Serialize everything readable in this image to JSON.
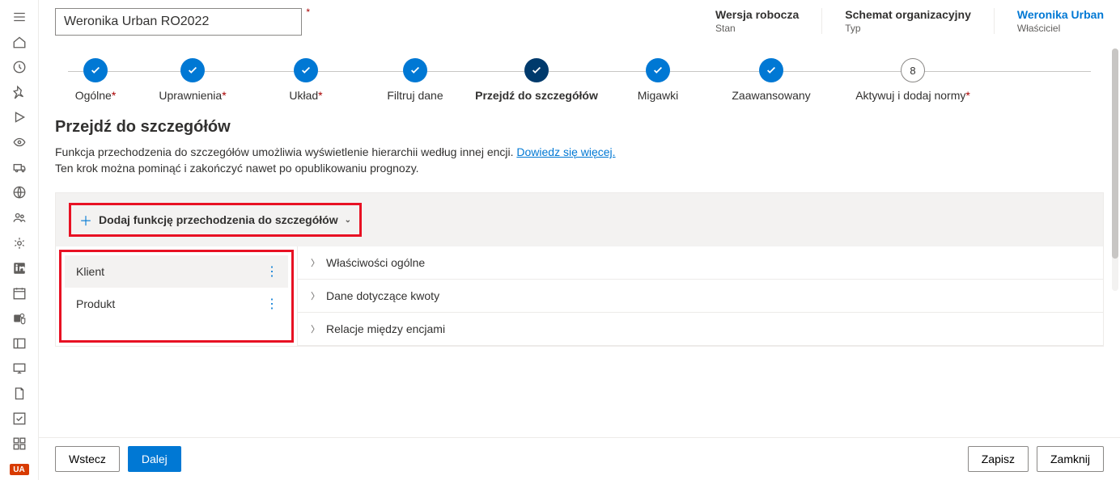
{
  "colors": {
    "primary": "#0078d4",
    "primary_dark": "#003a6c",
    "danger_border": "#e81123",
    "required": "#a80000",
    "text": "#323130",
    "text_secondary": "#605e5c",
    "border": "#edebe9",
    "panel_bg": "#f3f2f1"
  },
  "sidebar": {
    "badge": "UA"
  },
  "header": {
    "title_value": "Weronika Urban RO2022",
    "required": true,
    "meta": [
      {
        "label": "Wersja robocza",
        "sub": "Stan",
        "link": false
      },
      {
        "label": "Schemat organizacyjny",
        "sub": "Typ",
        "link": false
      },
      {
        "label": "Weronika Urban",
        "sub": "Właściciel",
        "link": true
      }
    ]
  },
  "wizard": {
    "steps": [
      {
        "label": "Ogólne",
        "required": true,
        "state": "done"
      },
      {
        "label": "Uprawnienia",
        "required": true,
        "state": "done"
      },
      {
        "label": "Układ",
        "required": true,
        "state": "done"
      },
      {
        "label": "Filtruj dane",
        "required": false,
        "state": "done"
      },
      {
        "label": "Przejdź do szczegółów",
        "required": false,
        "state": "current"
      },
      {
        "label": "Migawki",
        "required": false,
        "state": "done"
      },
      {
        "label": "Zaawansowany",
        "required": false,
        "state": "done"
      },
      {
        "label": "Aktywuj i dodaj normy",
        "required": true,
        "state": "pending",
        "num": "8"
      }
    ]
  },
  "section": {
    "title": "Przejdź do szczegółów",
    "desc1": "Funkcja przechodzenia do szczegółów umożliwia wyświetlenie hierarchii według innej encji. ",
    "link_text": "Dowiedz się więcej.",
    "desc2": "Ten krok można pominąć i zakończyć nawet po opublikowaniu prognozy."
  },
  "config": {
    "add_label": "Dodaj funkcję przechodzenia do szczegółów",
    "items": [
      {
        "label": "Klient",
        "selected": true
      },
      {
        "label": "Produkt",
        "selected": false
      }
    ],
    "accordions": [
      "Właściwości ogólne",
      "Dane dotyczące kwoty",
      "Relacje między encjami"
    ]
  },
  "footer": {
    "back": "Wstecz",
    "next": "Dalej",
    "save": "Zapisz",
    "close": "Zamknij"
  }
}
